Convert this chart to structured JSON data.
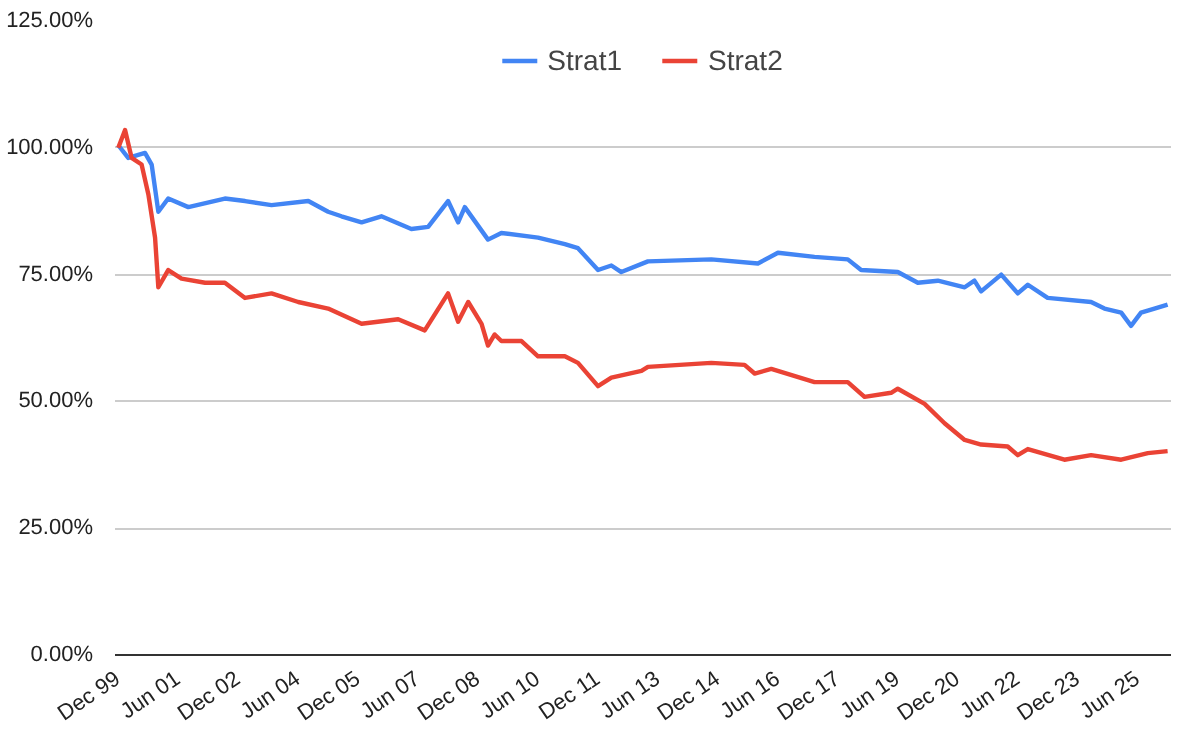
{
  "chart_data": {
    "type": "line",
    "xlim": [
      "1999-11",
      "2026-04"
    ],
    "ylim": [
      0,
      125
    ],
    "xticks": [
      {
        "value": "1999-12",
        "label": "Dec 99"
      },
      {
        "value": "2001-06",
        "label": "Jun 01"
      },
      {
        "value": "2002-12",
        "label": "Dec 02"
      },
      {
        "value": "2004-06",
        "label": "Jun 04"
      },
      {
        "value": "2005-12",
        "label": "Dec 05"
      },
      {
        "value": "2007-06",
        "label": "Jun 07"
      },
      {
        "value": "2008-12",
        "label": "Dec 08"
      },
      {
        "value": "2010-06",
        "label": "Jun 10"
      },
      {
        "value": "2011-12",
        "label": "Dec 11"
      },
      {
        "value": "2013-06",
        "label": "Jun 13"
      },
      {
        "value": "2014-12",
        "label": "Dec 14"
      },
      {
        "value": "2016-06",
        "label": "Jun 16"
      },
      {
        "value": "2017-12",
        "label": "Dec 17"
      },
      {
        "value": "2019-06",
        "label": "Jun 19"
      },
      {
        "value": "2020-12",
        "label": "Dec 20"
      },
      {
        "value": "2022-06",
        "label": "Jun 22"
      },
      {
        "value": "2023-12",
        "label": "Dec 23"
      },
      {
        "value": "2025-06",
        "label": "Jun 25"
      }
    ],
    "yticks": [
      {
        "value": 0,
        "label": "0.00%"
      },
      {
        "value": 25,
        "label": "25.00%"
      },
      {
        "value": 50,
        "label": "50.00%"
      },
      {
        "value": 75,
        "label": "75.00%"
      },
      {
        "value": 100,
        "label": "100.00%"
      },
      {
        "value": 125,
        "label": "125.00%"
      }
    ],
    "grid": "y",
    "legend": "top",
    "marker": "none",
    "line_style": "solid",
    "series": [
      {
        "name": "Strat1",
        "color": "#4285f4",
        "x": [
          "1999-12",
          "2000-03",
          "2000-08",
          "2000-10",
          "2000-12",
          "2001-03",
          "2001-09",
          "2002-08",
          "2003-02",
          "2003-10",
          "2004-09",
          "2005-03",
          "2005-07",
          "2006-01",
          "2006-07",
          "2007-04",
          "2007-09",
          "2008-03",
          "2008-06",
          "2008-08",
          "2009-03",
          "2009-07",
          "2010-06",
          "2011-02",
          "2011-06",
          "2011-12",
          "2012-04",
          "2012-07",
          "2013-03",
          "2014-10",
          "2015-12",
          "2016-06",
          "2017-05",
          "2018-03",
          "2018-07",
          "2019-06",
          "2019-12",
          "2020-06",
          "2021-02",
          "2021-05",
          "2021-07",
          "2022-01",
          "2022-06",
          "2022-09",
          "2023-03",
          "2024-04",
          "2024-08",
          "2025-01",
          "2025-04",
          "2025-07",
          "2025-11",
          "2026-03"
        ],
        "values": [
          100.5,
          98,
          99,
          96.7,
          87.4,
          90,
          88.3,
          90,
          89.5,
          88.7,
          89.5,
          87.4,
          86.5,
          85.3,
          86.5,
          84,
          84.4,
          89.5,
          85.3,
          88.3,
          81.9,
          83.2,
          82.3,
          81,
          80.2,
          75.9,
          76.8,
          75.5,
          77.6,
          78,
          77.2,
          79.3,
          78.5,
          78,
          75.9,
          75.5,
          73.4,
          73.8,
          72.5,
          73.8,
          71.7,
          75,
          71.3,
          73,
          70.4,
          69.6,
          68.3,
          67.5,
          64.9,
          67.5,
          68.3,
          69.1
        ]
      },
      {
        "name": "Strat2",
        "color": "#ea4335",
        "x": [
          "1999-12",
          "2000-02",
          "2000-04",
          "2000-07",
          "2000-09",
          "2000-11",
          "2000-12",
          "2001-03",
          "2001-07",
          "2002-02",
          "2002-08",
          "2003-02",
          "2003-10",
          "2004-06",
          "2005-03",
          "2006-01",
          "2006-12",
          "2007-08",
          "2008-03",
          "2008-06",
          "2008-09",
          "2009-01",
          "2009-03",
          "2009-05",
          "2009-07",
          "2010-01",
          "2010-06",
          "2011-02",
          "2011-06",
          "2011-12",
          "2012-04",
          "2013-01",
          "2013-03",
          "2014-10",
          "2015-08",
          "2015-11",
          "2016-04",
          "2017-05",
          "2018-03",
          "2018-08",
          "2019-04",
          "2019-06",
          "2020-02",
          "2020-08",
          "2021-02",
          "2021-07",
          "2022-03",
          "2022-06",
          "2022-09",
          "2023-08",
          "2024-04",
          "2025-01",
          "2025-09",
          "2026-03"
        ],
        "values": [
          100,
          103.5,
          98,
          96.7,
          90.8,
          82.3,
          72.5,
          75.9,
          74.2,
          73.4,
          73.4,
          70.4,
          71.3,
          69.6,
          68.3,
          65.3,
          66.2,
          64,
          71.3,
          65.7,
          69.6,
          65.3,
          61,
          63.2,
          61.9,
          61.9,
          58.9,
          58.9,
          57.6,
          53,
          54.7,
          56,
          56.8,
          57.6,
          57.2,
          55.5,
          56.4,
          53.8,
          53.8,
          50.9,
          51.7,
          52.5,
          49.5,
          45.7,
          42.4,
          41.5,
          41.1,
          39.4,
          40.6,
          38.5,
          39.4,
          38.5,
          39.8,
          40.2
        ]
      }
    ]
  }
}
